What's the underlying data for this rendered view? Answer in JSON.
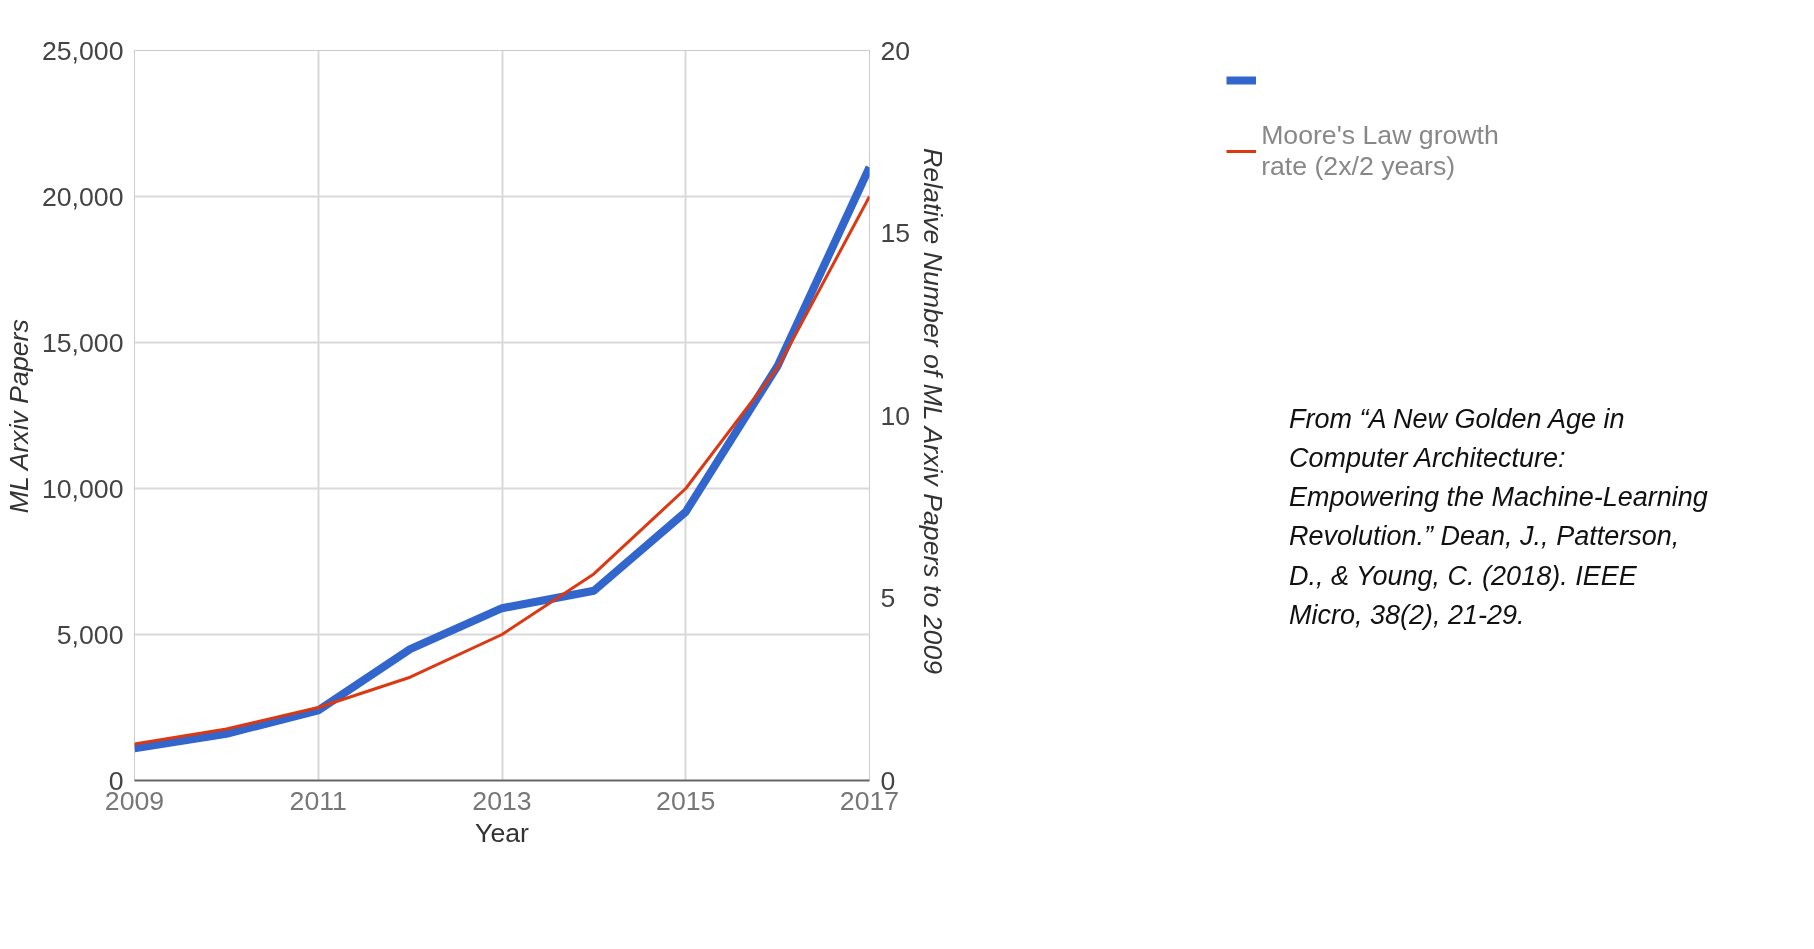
{
  "chart_data": {
    "type": "line",
    "xlabel": "Year",
    "ylabel": "ML Arxiv Papers",
    "y2label": "Relative Number of ML Arxiv Papers  to 2009",
    "x": [
      2009,
      2010,
      2011,
      2012,
      2013,
      2014,
      2015,
      2016,
      2017
    ],
    "series": [
      {
        "color": "#3366cc",
        "values": [
          1100,
          1600,
          2400,
          4500,
          5900,
          6500,
          9200,
          14200,
          21000
        ]
      },
      {
        "name": "Moore's Law growth rate (2x/2 years)",
        "color": "#dc3912",
        "axis": "y2",
        "values": [
          1,
          1.41,
          2,
          2.83,
          4,
          5.66,
          8,
          11.31,
          16
        ]
      }
    ],
    "xlim": [
      2009,
      2017
    ],
    "xticks": [
      2009,
      2011,
      2013,
      2015,
      2017
    ],
    "ylim": [
      0,
      25000
    ],
    "yticks": [
      0,
      {
        "value": 5000,
        "label": "5,000"
      },
      {
        "value": 10000,
        "label": "10,000"
      },
      {
        "value": 15000,
        "label": "15,000"
      },
      {
        "value": 20000,
        "label": "20,000"
      },
      {
        "value": 25000,
        "label": "25,000"
      }
    ],
    "y2lim": [
      0,
      20
    ],
    "y2ticks": [
      0,
      5,
      10,
      15,
      20
    ],
    "grid": true,
    "legend": "top right",
    "annotations": [
      "From “A New Golden Age in Computer Architecture: Empowering the Machine-Learning Revolution.” Dean, J., Patterson, D., & Young, C. (2018).  IEEE Micro, 38(2), 21-29."
    ]
  }
}
